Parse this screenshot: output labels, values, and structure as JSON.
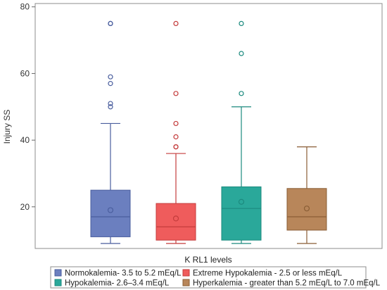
{
  "chart_data": {
    "type": "boxplot",
    "ylabel": "Injury SS",
    "yticks": [
      20,
      40,
      60,
      80
    ],
    "ylim": [
      7.5,
      81
    ],
    "legend_title": "K RL1 levels",
    "legend_position": "bottom",
    "series": [
      {
        "name": "Normokalemia- 3.5 to 5.2 mEq/L",
        "color": "#6b7fbf",
        "stroke": "#4a5e9e",
        "min": 9,
        "q1": 11,
        "median": 17,
        "q3": 25,
        "max": 45,
        "mean": 19,
        "outliers": [
          50,
          51,
          57,
          59,
          75,
          75
        ]
      },
      {
        "name": "Extreme Hypokalemia - 2.5 or less mEq/L",
        "color": "#ef5c5c",
        "stroke": "#c43c3c",
        "min": 9,
        "q1": 10,
        "median": 14,
        "q3": 21,
        "max": 36,
        "mean": 16.5,
        "outliers": [
          38,
          38,
          41,
          45,
          54,
          75
        ]
      },
      {
        "name": "Hypokalemia-  2.6–3.4 mEq/L",
        "color": "#2aa89a",
        "stroke": "#1c8a7e",
        "min": 9,
        "q1": 10,
        "median": 19.5,
        "q3": 26,
        "max": 50,
        "mean": 21.5,
        "outliers": [
          54,
          66,
          75
        ]
      },
      {
        "name": "Hyperkalemia - greater than 5.2 mEq/L to 7.0 mEq/L",
        "color": "#b8865a",
        "stroke": "#8a5e36",
        "min": 9,
        "q1": 13,
        "median": 17,
        "q3": 25.5,
        "max": 38,
        "mean": 19.5,
        "outliers": []
      }
    ]
  }
}
